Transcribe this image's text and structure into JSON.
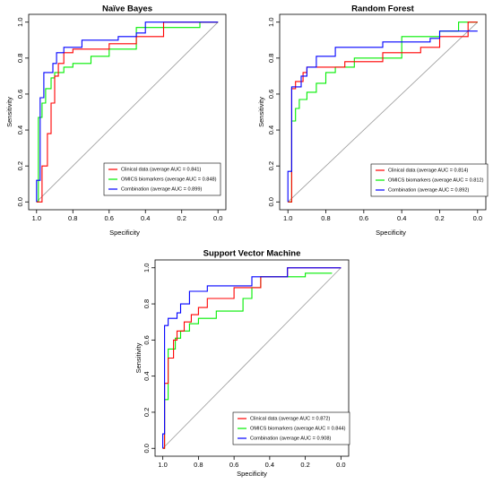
{
  "chart_data": [
    {
      "type": "line",
      "title": "Naïve Bayes",
      "xlabel": "Specificity",
      "ylabel": "Sensitivity",
      "xlim": [
        1.0,
        0.0
      ],
      "ylim": [
        0.0,
        1.0
      ],
      "x_ticks": [
        "1.0",
        "0.8",
        "0.6",
        "0.4",
        "0.2",
        "0.0"
      ],
      "y_ticks": [
        "0.0",
        "0.2",
        "0.4",
        "0.6",
        "0.8",
        "1.0"
      ],
      "legend_position": "bottom-right",
      "diagonal": true,
      "series": [
        {
          "name": "Clinical data (average AUC = 0.841)",
          "color": "#ff0000",
          "x": [
            1.0,
            0.97,
            0.97,
            0.94,
            0.94,
            0.92,
            0.92,
            0.9,
            0.9,
            0.88,
            0.88,
            0.85,
            0.85,
            0.8,
            0.8,
            0.6,
            0.6,
            0.45,
            0.45,
            0.3,
            0.3,
            0.0
          ],
          "y": [
            0.0,
            0.0,
            0.2,
            0.2,
            0.38,
            0.38,
            0.55,
            0.55,
            0.7,
            0.7,
            0.77,
            0.77,
            0.83,
            0.83,
            0.85,
            0.85,
            0.88,
            0.88,
            0.92,
            0.92,
            1.0,
            1.0
          ]
        },
        {
          "name": "OMICS biomarkers (average AUC = 0.848)",
          "color": "#00ee00",
          "x": [
            1.0,
            0.99,
            0.99,
            0.97,
            0.97,
            0.95,
            0.95,
            0.92,
            0.92,
            0.9,
            0.9,
            0.85,
            0.85,
            0.8,
            0.8,
            0.7,
            0.7,
            0.6,
            0.6,
            0.45,
            0.45,
            0.1,
            0.1,
            0.0
          ],
          "y": [
            0.0,
            0.0,
            0.47,
            0.47,
            0.55,
            0.55,
            0.63,
            0.63,
            0.69,
            0.69,
            0.72,
            0.72,
            0.75,
            0.75,
            0.77,
            0.77,
            0.81,
            0.81,
            0.85,
            0.85,
            0.97,
            0.97,
            1.0,
            1.0
          ]
        },
        {
          "name": "Combination (average AUC = 0.899)",
          "color": "#0000ff",
          "x": [
            1.0,
            1.0,
            0.98,
            0.98,
            0.96,
            0.96,
            0.91,
            0.91,
            0.89,
            0.89,
            0.85,
            0.85,
            0.75,
            0.75,
            0.55,
            0.55,
            0.45,
            0.45,
            0.4,
            0.4,
            0.0
          ],
          "y": [
            0.0,
            0.12,
            0.12,
            0.58,
            0.58,
            0.72,
            0.72,
            0.77,
            0.77,
            0.83,
            0.83,
            0.86,
            0.86,
            0.9,
            0.9,
            0.92,
            0.92,
            0.94,
            0.94,
            1.0,
            1.0
          ]
        }
      ]
    },
    {
      "type": "line",
      "title": "Random Forest",
      "xlabel": "Specificity",
      "ylabel": "Sensitivity",
      "xlim": [
        1.0,
        0.0
      ],
      "ylim": [
        0.0,
        1.0
      ],
      "x_ticks": [
        "1.0",
        "0.8",
        "0.6",
        "0.4",
        "0.2",
        "0.0"
      ],
      "y_ticks": [
        "0.0",
        "0.2",
        "0.4",
        "0.6",
        "0.8",
        "1.0"
      ],
      "legend_position": "bottom-right",
      "diagonal": true,
      "series": [
        {
          "name": "Clinical data (average AUC = 0.814)",
          "color": "#ff0000",
          "x": [
            1.0,
            0.98,
            0.98,
            0.96,
            0.96,
            0.92,
            0.92,
            0.9,
            0.9,
            0.7,
            0.7,
            0.5,
            0.5,
            0.3,
            0.3,
            0.2,
            0.2,
            0.05,
            0.05,
            0.0
          ],
          "y": [
            0.0,
            0.0,
            0.63,
            0.63,
            0.67,
            0.67,
            0.72,
            0.72,
            0.75,
            0.75,
            0.78,
            0.78,
            0.83,
            0.83,
            0.86,
            0.86,
            0.92,
            0.92,
            1.0,
            1.0
          ]
        },
        {
          "name": "OMICS biomarkers (average AUC = 0.812)",
          "color": "#00ee00",
          "x": [
            1.0,
            0.98,
            0.98,
            0.96,
            0.96,
            0.94,
            0.94,
            0.9,
            0.9,
            0.85,
            0.85,
            0.8,
            0.8,
            0.75,
            0.75,
            0.65,
            0.65,
            0.4,
            0.4,
            0.2,
            0.2,
            0.1,
            0.1,
            0.0
          ],
          "y": [
            0.0,
            0.0,
            0.45,
            0.45,
            0.52,
            0.52,
            0.57,
            0.57,
            0.61,
            0.61,
            0.66,
            0.66,
            0.72,
            0.72,
            0.75,
            0.75,
            0.8,
            0.8,
            0.92,
            0.92,
            0.95,
            0.95,
            1.0,
            1.0
          ]
        },
        {
          "name": "Combination (average AUC = 0.892)",
          "color": "#0000ff",
          "x": [
            1.0,
            1.0,
            0.98,
            0.98,
            0.93,
            0.93,
            0.9,
            0.9,
            0.85,
            0.85,
            0.75,
            0.75,
            0.5,
            0.5,
            0.25,
            0.25,
            0.2,
            0.2,
            0.0
          ],
          "y": [
            0.0,
            0.17,
            0.17,
            0.64,
            0.64,
            0.7,
            0.7,
            0.75,
            0.75,
            0.81,
            0.81,
            0.86,
            0.86,
            0.89,
            0.89,
            0.91,
            0.91,
            0.95,
            0.95
          ]
        }
      ]
    },
    {
      "type": "line",
      "title": "Support Vector Machine",
      "xlabel": "Specificity",
      "ylabel": "Sensitivity",
      "xlim": [
        1.0,
        0.0
      ],
      "ylim": [
        0.0,
        1.0
      ],
      "x_ticks": [
        "1.0",
        "0.8",
        "0.6",
        "0.4",
        "0.2",
        "0.0"
      ],
      "y_ticks": [
        "0.0",
        "0.2",
        "0.4",
        "0.6",
        "0.8",
        "1.0"
      ],
      "legend_position": "bottom-right",
      "diagonal": true,
      "series": [
        {
          "name": "Clinical data (average AUC = 0.872)",
          "color": "#ff0000",
          "x": [
            1.0,
            0.99,
            0.99,
            0.97,
            0.97,
            0.94,
            0.94,
            0.92,
            0.92,
            0.88,
            0.88,
            0.84,
            0.84,
            0.8,
            0.8,
            0.75,
            0.75,
            0.6,
            0.6,
            0.45,
            0.45,
            0.3,
            0.3,
            0.0
          ],
          "y": [
            0.0,
            0.0,
            0.36,
            0.36,
            0.5,
            0.5,
            0.6,
            0.6,
            0.65,
            0.65,
            0.7,
            0.7,
            0.74,
            0.74,
            0.78,
            0.78,
            0.83,
            0.83,
            0.89,
            0.89,
            0.95,
            0.95,
            1.0,
            1.0
          ]
        },
        {
          "name": "OMICS biomarkers (average AUC = 0.844)",
          "color": "#00ee00",
          "x": [
            1.0,
            0.99,
            0.99,
            0.97,
            0.97,
            0.93,
            0.93,
            0.9,
            0.9,
            0.85,
            0.85,
            0.8,
            0.8,
            0.7,
            0.7,
            0.55,
            0.55,
            0.5,
            0.5,
            0.45,
            0.45,
            0.2,
            0.2,
            0.05
          ],
          "y": [
            0.0,
            0.0,
            0.27,
            0.27,
            0.55,
            0.55,
            0.61,
            0.61,
            0.65,
            0.65,
            0.69,
            0.69,
            0.72,
            0.72,
            0.76,
            0.76,
            0.83,
            0.83,
            0.89,
            0.89,
            0.95,
            0.95,
            0.97,
            0.97
          ]
        },
        {
          "name": "Combination (average AUC = 0.908)",
          "color": "#0000ff",
          "x": [
            1.0,
            1.0,
            0.99,
            0.99,
            0.97,
            0.97,
            0.92,
            0.92,
            0.9,
            0.9,
            0.85,
            0.85,
            0.75,
            0.75,
            0.5,
            0.5,
            0.3,
            0.3,
            0.0
          ],
          "y": [
            0.0,
            0.08,
            0.08,
            0.68,
            0.68,
            0.72,
            0.72,
            0.75,
            0.75,
            0.8,
            0.8,
            0.87,
            0.87,
            0.9,
            0.9,
            0.95,
            0.95,
            1.0,
            1.0
          ]
        }
      ]
    }
  ]
}
